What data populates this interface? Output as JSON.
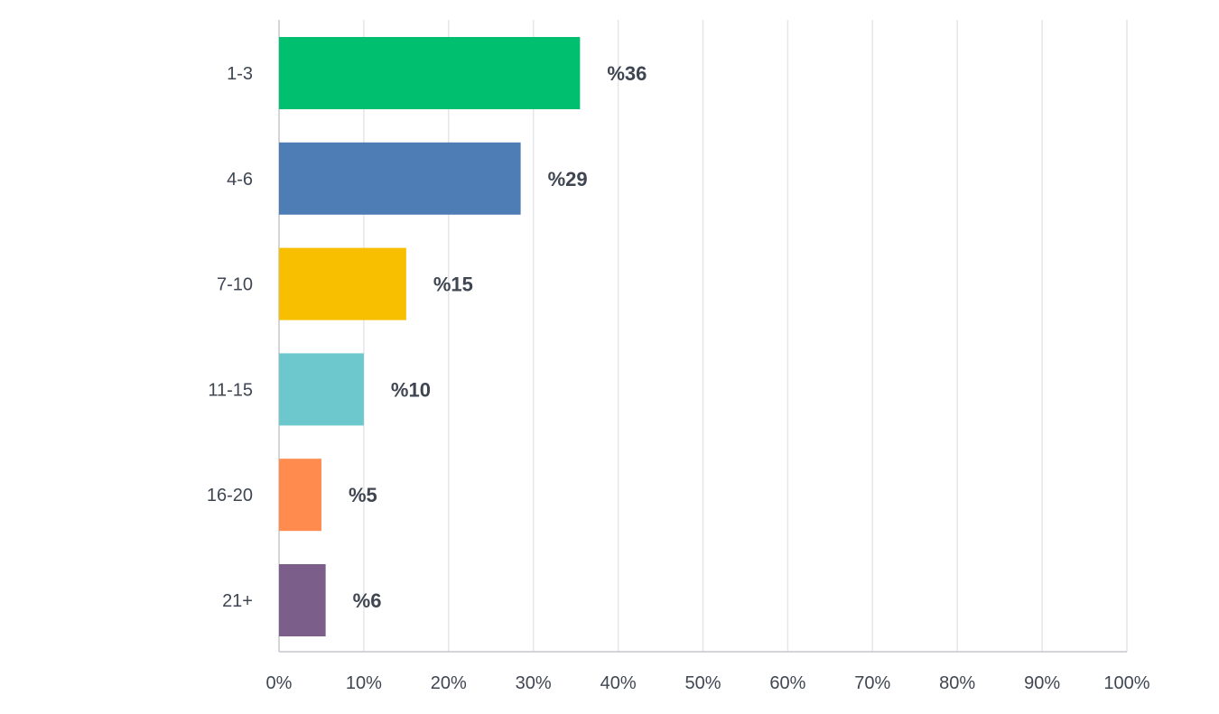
{
  "chart_data": {
    "type": "bar",
    "orientation": "horizontal",
    "categories": [
      "1-3",
      "4-6",
      "7-10",
      "11-15",
      "16-20",
      "21+"
    ],
    "values": [
      35.5,
      28.5,
      15,
      10,
      5,
      5.5
    ],
    "value_labels": [
      "%36",
      "%29",
      "%15",
      "%10",
      "%5",
      "%6"
    ],
    "colors": [
      "#00bf6f",
      "#4e7cb5",
      "#f7bf00",
      "#6cc8cd",
      "#ff8b4f",
      "#7b5f8a"
    ],
    "xlim": [
      0,
      100
    ],
    "x_ticks": [
      0,
      10,
      20,
      30,
      40,
      50,
      60,
      70,
      80,
      90,
      100
    ],
    "x_tick_labels": [
      "0%",
      "10%",
      "20%",
      "30%",
      "40%",
      "50%",
      "60%",
      "70%",
      "80%",
      "90%",
      "100%"
    ],
    "grid": true,
    "title": "",
    "xlabel": "",
    "ylabel": ""
  }
}
